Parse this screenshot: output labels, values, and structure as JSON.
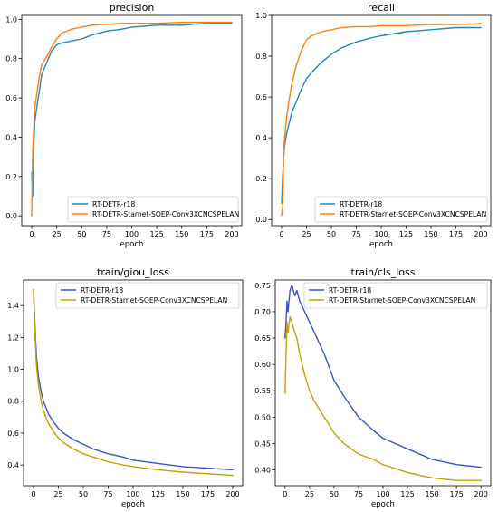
{
  "chart_data": [
    {
      "type": "line",
      "title": "precision",
      "xlabel": "epoch",
      "ylabel": "",
      "xlim": [
        -10,
        210
      ],
      "ylim": [
        -0.05,
        1.02
      ],
      "xticks": [
        0,
        25,
        50,
        75,
        100,
        125,
        150,
        175,
        200
      ],
      "yticks": [
        0.0,
        0.2,
        0.4,
        0.6,
        0.8,
        1.0
      ],
      "ytick_labels": [
        "0.0",
        "0.2",
        "0.4",
        "0.6",
        "0.8",
        "1.0"
      ],
      "legend": "lower-right",
      "grid": false,
      "series": [
        {
          "name": "RT-DETR-r18",
          "color": "#1f89b4",
          "x": [
            0,
            1,
            2,
            3,
            5,
            8,
            10,
            15,
            20,
            25,
            30,
            40,
            50,
            60,
            75,
            90,
            100,
            125,
            150,
            175,
            200
          ],
          "y": [
            0.22,
            0.1,
            0.35,
            0.48,
            0.55,
            0.65,
            0.72,
            0.78,
            0.84,
            0.87,
            0.88,
            0.89,
            0.9,
            0.92,
            0.94,
            0.95,
            0.96,
            0.97,
            0.97,
            0.98,
            0.98
          ]
        },
        {
          "name": "RT-DETR-Starnet-SOEP-Conv3XCNCSPELAN",
          "color": "#ff7f0e",
          "x": [
            0,
            1,
            2,
            3,
            5,
            8,
            10,
            15,
            20,
            25,
            30,
            40,
            50,
            60,
            75,
            90,
            100,
            125,
            150,
            175,
            200
          ],
          "y": [
            0.0,
            0.33,
            0.45,
            0.55,
            0.62,
            0.72,
            0.77,
            0.81,
            0.86,
            0.9,
            0.93,
            0.95,
            0.96,
            0.97,
            0.975,
            0.98,
            0.98,
            0.98,
            0.985,
            0.985,
            0.985
          ]
        }
      ]
    },
    {
      "type": "line",
      "title": "recall",
      "xlabel": "epoch",
      "ylabel": "",
      "xlim": [
        -10,
        210
      ],
      "ylim": [
        -0.03,
        1.0
      ],
      "xticks": [
        0,
        25,
        50,
        75,
        100,
        125,
        150,
        175,
        200
      ],
      "yticks": [
        0.0,
        0.2,
        0.4,
        0.6,
        0.8,
        1.0
      ],
      "ytick_labels": [
        "0.0",
        "0.2",
        "0.4",
        "0.6",
        "0.8",
        "1.0"
      ],
      "legend": "lower-right",
      "grid": false,
      "series": [
        {
          "name": "RT-DETR-r18",
          "color": "#1f89b4",
          "x": [
            0,
            1,
            2,
            3,
            5,
            8,
            10,
            15,
            20,
            25,
            30,
            40,
            50,
            60,
            75,
            90,
            100,
            125,
            150,
            175,
            200
          ],
          "y": [
            0.08,
            0.2,
            0.3,
            0.36,
            0.42,
            0.48,
            0.52,
            0.58,
            0.64,
            0.69,
            0.72,
            0.77,
            0.81,
            0.84,
            0.87,
            0.89,
            0.9,
            0.92,
            0.93,
            0.94,
            0.94
          ]
        },
        {
          "name": "RT-DETR-Starnet-SOEP-Conv3XCNCSPELAN",
          "color": "#ff7f0e",
          "x": [
            0,
            1,
            2,
            3,
            5,
            8,
            10,
            15,
            20,
            25,
            30,
            40,
            50,
            60,
            75,
            90,
            100,
            125,
            150,
            175,
            200
          ],
          "y": [
            0.02,
            0.06,
            0.3,
            0.4,
            0.5,
            0.6,
            0.66,
            0.76,
            0.83,
            0.88,
            0.9,
            0.92,
            0.93,
            0.94,
            0.945,
            0.945,
            0.95,
            0.95,
            0.955,
            0.955,
            0.96
          ]
        }
      ]
    },
    {
      "type": "line",
      "title": "train/giou_loss",
      "xlabel": "epoch",
      "ylabel": "",
      "xlim": [
        -10,
        210
      ],
      "ylim": [
        0.27,
        1.56
      ],
      "xticks": [
        0,
        25,
        50,
        75,
        100,
        125,
        150,
        175,
        200
      ],
      "yticks": [
        0.4,
        0.6,
        0.8,
        1.0,
        1.2,
        1.4
      ],
      "ytick_labels": [
        "0.4",
        "0.6",
        "0.8",
        "1.0",
        "1.2",
        "1.4"
      ],
      "legend": "top-right",
      "grid": false,
      "series": [
        {
          "name": "RT-DETR-r18",
          "color": "#3b55c8",
          "x": [
            0,
            1,
            2,
            3,
            5,
            8,
            10,
            15,
            20,
            25,
            30,
            40,
            50,
            60,
            75,
            90,
            100,
            125,
            150,
            175,
            200
          ],
          "y": [
            1.5,
            1.35,
            1.2,
            1.08,
            0.95,
            0.85,
            0.8,
            0.72,
            0.67,
            0.63,
            0.6,
            0.56,
            0.53,
            0.5,
            0.47,
            0.45,
            0.43,
            0.41,
            0.39,
            0.38,
            0.37
          ]
        },
        {
          "name": "RT-DETR-Starnet-SOEP-Conv3XCNCSPELAN",
          "color": "#c8a000",
          "x": [
            0,
            1,
            2,
            3,
            5,
            8,
            10,
            15,
            20,
            25,
            30,
            40,
            50,
            60,
            75,
            90,
            100,
            125,
            150,
            175,
            200
          ],
          "y": [
            1.5,
            1.3,
            1.15,
            1.02,
            0.9,
            0.79,
            0.74,
            0.66,
            0.61,
            0.57,
            0.54,
            0.5,
            0.47,
            0.45,
            0.42,
            0.4,
            0.39,
            0.37,
            0.355,
            0.345,
            0.335
          ]
        }
      ]
    },
    {
      "type": "line",
      "title": "train/cls_loss",
      "xlabel": "epoch",
      "ylabel": "",
      "xlim": [
        -10,
        210
      ],
      "ylim": [
        0.37,
        0.76
      ],
      "xticks": [
        0,
        25,
        50,
        75,
        100,
        125,
        150,
        175,
        200
      ],
      "yticks": [
        0.4,
        0.45,
        0.5,
        0.55,
        0.6,
        0.65,
        0.7,
        0.75
      ],
      "ytick_labels": [
        "0.40",
        "0.45",
        "0.50",
        "0.55",
        "0.60",
        "0.65",
        "0.70",
        "0.75"
      ],
      "legend": "top-right",
      "grid": false,
      "series": [
        {
          "name": "RT-DETR-r18",
          "color": "#3b55c8",
          "x": [
            0,
            1,
            2,
            3,
            5,
            7,
            10,
            12,
            15,
            20,
            25,
            30,
            40,
            50,
            60,
            75,
            90,
            100,
            125,
            150,
            175,
            200
          ],
          "y": [
            0.65,
            0.68,
            0.72,
            0.7,
            0.74,
            0.75,
            0.73,
            0.74,
            0.72,
            0.7,
            0.68,
            0.66,
            0.62,
            0.57,
            0.54,
            0.5,
            0.475,
            0.46,
            0.44,
            0.42,
            0.41,
            0.405
          ]
        },
        {
          "name": "RT-DETR-Starnet-SOEP-Conv3XCNCSPELAN",
          "color": "#c8a000",
          "x": [
            0,
            1,
            2,
            3,
            5,
            7,
            10,
            12,
            15,
            20,
            25,
            30,
            40,
            50,
            60,
            75,
            90,
            100,
            125,
            150,
            175,
            200
          ],
          "y": [
            0.545,
            0.62,
            0.68,
            0.66,
            0.69,
            0.68,
            0.66,
            0.65,
            0.62,
            0.58,
            0.55,
            0.53,
            0.5,
            0.47,
            0.45,
            0.43,
            0.42,
            0.41,
            0.395,
            0.385,
            0.38,
            0.38
          ]
        }
      ]
    }
  ]
}
